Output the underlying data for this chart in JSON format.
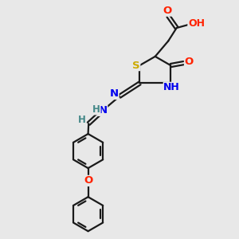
{
  "background_color": "#e8e8e8",
  "bond_color": "#1a1a1a",
  "bond_width": 1.6,
  "atom_colors": {
    "O": "#ff2200",
    "N": "#0000ee",
    "S": "#ccaa00",
    "H": "#448888",
    "C": "#1a1a1a"
  },
  "font_size": 8.0,
  "fig_size": [
    3.0,
    3.0
  ],
  "dpi": 100
}
